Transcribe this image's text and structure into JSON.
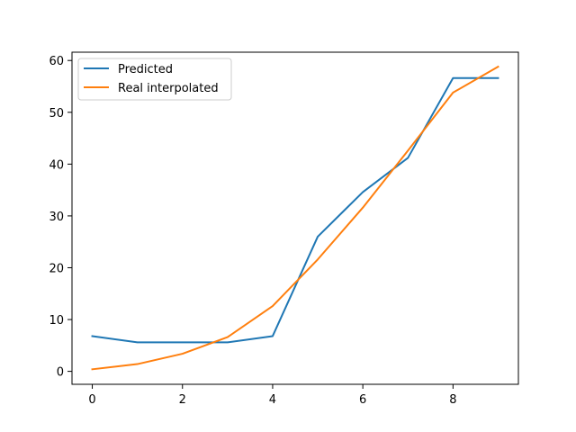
{
  "chart_data": {
    "type": "line",
    "title": "",
    "xlabel": "",
    "ylabel": "",
    "x": [
      0,
      1,
      2,
      3,
      4,
      5,
      6,
      7,
      8,
      9
    ],
    "xlim": [
      -0.45,
      9.45
    ],
    "ylim": [
      -2.5,
      61.6
    ],
    "x_ticks": [
      0,
      2,
      4,
      6,
      8
    ],
    "y_ticks": [
      0,
      10,
      20,
      30,
      40,
      50,
      60
    ],
    "grid": false,
    "legend": {
      "placement": "top-left",
      "entries": [
        "Predicted",
        "Real interpolated"
      ]
    },
    "series": [
      {
        "name": "Predicted",
        "color": "#1f77b4",
        "values": [
          6.8,
          5.6,
          5.6,
          5.6,
          6.8,
          26.0,
          34.6,
          41.2,
          56.6,
          56.6
        ]
      },
      {
        "name": "Real interpolated",
        "color": "#ff7f0e",
        "values": [
          0.4,
          1.4,
          3.4,
          6.6,
          12.6,
          21.6,
          31.6,
          42.6,
          53.8,
          58.8
        ]
      }
    ]
  }
}
